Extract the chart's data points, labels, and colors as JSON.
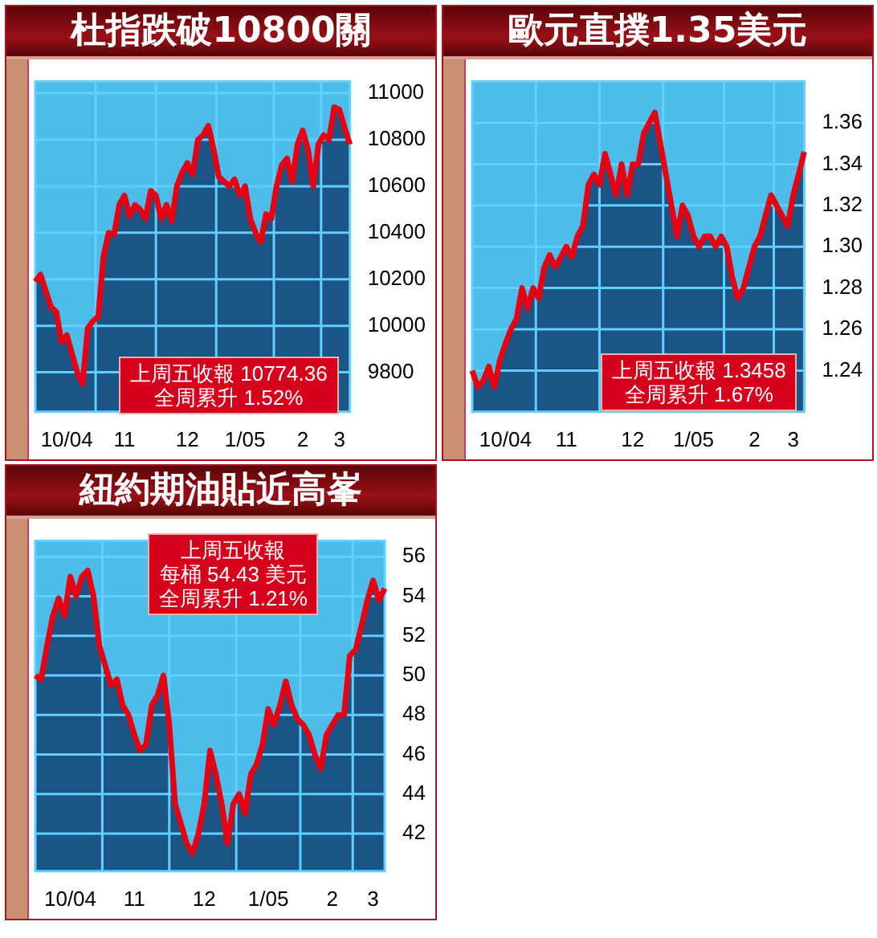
{
  "chart_data": [
    {
      "type": "area",
      "title": "杜指跌破10800關",
      "categories": [
        null,
        null,
        null,
        null,
        null,
        null,
        "10/04",
        null,
        null,
        null,
        null,
        null,
        null,
        null,
        null,
        null,
        null,
        "11",
        null,
        null,
        null,
        null,
        null,
        null,
        null,
        null,
        null,
        null,
        null,
        "12",
        null,
        null,
        null,
        null,
        null,
        null,
        null,
        null,
        null,
        null,
        "1/05",
        null,
        null,
        null,
        null,
        null,
        null,
        null,
        null,
        null,
        null,
        "2",
        null,
        null,
        null,
        null,
        null,
        null,
        "3",
        null,
        null
      ],
      "series": [
        {
          "color": "#1a5585",
          "values": [
            10190,
            10220,
            10150,
            10080,
            10060,
            9930,
            9960,
            9880,
            9800,
            9750,
            9990,
            10020,
            10040,
            10300,
            10400,
            10390,
            10520,
            10560,
            10470,
            10520,
            10500,
            10460,
            10580,
            10560,
            10460,
            10520,
            10450,
            10600,
            10660,
            10700,
            10650,
            10800,
            10820,
            10860,
            10760,
            10640,
            10620,
            10600,
            10630,
            10560,
            10600,
            10460,
            10400,
            10360,
            10480,
            10460,
            10600,
            10690,
            10720,
            10620,
            10780,
            10840,
            10760,
            10600,
            10780,
            10820,
            10800,
            10940,
            10930,
            10850,
            10780
          ]
        },
        {
          "type": "line",
          "color": "#e60012",
          "values": [
            10190,
            10220,
            10150,
            10080,
            10060,
            9930,
            9960,
            9880,
            9800,
            9750,
            9990,
            10020,
            10040,
            10300,
            10400,
            10390,
            10520,
            10560,
            10470,
            10520,
            10500,
            10460,
            10580,
            10560,
            10460,
            10520,
            10450,
            10600,
            10660,
            10700,
            10650,
            10800,
            10820,
            10860,
            10760,
            10640,
            10620,
            10600,
            10630,
            10560,
            10600,
            10460,
            10400,
            10360,
            10480,
            10460,
            10600,
            10690,
            10720,
            10620,
            10780,
            10840,
            10760,
            10600,
            10780,
            10820,
            10800,
            10940,
            10930,
            10850,
            10780
          ]
        }
      ],
      "ylim": [
        9630,
        11050
      ],
      "yticks": [
        9800,
        10000,
        10200,
        10400,
        10600,
        10800,
        11000
      ],
      "grid": true,
      "annotations": [
        "上周五收報 10774.36",
        "全周累升 1.52%"
      ]
    },
    {
      "type": "area",
      "title": "歐元直撲1.35美元",
      "categories": [
        null,
        null,
        null,
        null,
        null,
        null,
        "10/04",
        null,
        null,
        null,
        null,
        null,
        null,
        null,
        null,
        null,
        null,
        "11",
        null,
        null,
        null,
        null,
        null,
        null,
        null,
        null,
        null,
        null,
        null,
        "12",
        null,
        null,
        null,
        null,
        null,
        null,
        null,
        null,
        null,
        null,
        "1/05",
        null,
        null,
        null,
        null,
        null,
        null,
        null,
        null,
        null,
        null,
        "2",
        null,
        null,
        null,
        null,
        null,
        null,
        "3",
        null,
        null
      ],
      "series": [
        {
          "color": "#1a5585",
          "values": [
            1.24,
            1.232,
            1.235,
            1.242,
            1.232,
            1.245,
            1.253,
            1.26,
            1.265,
            1.28,
            1.27,
            1.28,
            1.275,
            1.29,
            1.296,
            1.29,
            1.295,
            1.3,
            1.295,
            1.305,
            1.31,
            1.33,
            1.335,
            1.33,
            1.345,
            1.335,
            1.325,
            1.34,
            1.325,
            1.34,
            1.34,
            1.355,
            1.36,
            1.365,
            1.35,
            1.335,
            1.32,
            1.305,
            1.32,
            1.315,
            1.305,
            1.3,
            1.305,
            1.305,
            1.3,
            1.305,
            1.3,
            1.285,
            1.275,
            1.28,
            1.29,
            1.3,
            1.305,
            1.315,
            1.325,
            1.32,
            1.315,
            1.31,
            1.325,
            1.335,
            1.346
          ]
        },
        {
          "type": "line",
          "color": "#e60012",
          "values": [
            1.24,
            1.232,
            1.235,
            1.242,
            1.232,
            1.245,
            1.253,
            1.26,
            1.265,
            1.28,
            1.27,
            1.28,
            1.275,
            1.29,
            1.296,
            1.29,
            1.295,
            1.3,
            1.295,
            1.305,
            1.31,
            1.33,
            1.335,
            1.33,
            1.345,
            1.335,
            1.325,
            1.34,
            1.325,
            1.34,
            1.34,
            1.355,
            1.36,
            1.365,
            1.35,
            1.335,
            1.32,
            1.305,
            1.32,
            1.315,
            1.305,
            1.3,
            1.305,
            1.305,
            1.3,
            1.305,
            1.3,
            1.285,
            1.275,
            1.28,
            1.29,
            1.3,
            1.305,
            1.315,
            1.325,
            1.32,
            1.315,
            1.31,
            1.325,
            1.335,
            1.346
          ]
        }
      ],
      "ylim": [
        1.22,
        1.38
      ],
      "yticks": [
        {
          "value": 1.24,
          "label": "1.24"
        },
        {
          "value": 1.26,
          "label": "1.26"
        },
        {
          "value": 1.28,
          "label": "1.28"
        },
        {
          "value": 1.3,
          "label": "1.30"
        },
        {
          "value": 1.32,
          "label": "1.32"
        },
        {
          "value": 1.34,
          "label": "1.34"
        },
        {
          "value": 1.36,
          "label": "1.36"
        }
      ],
      "grid": true,
      "annotations": [
        "上周五收報 1.3458",
        "全周累升 1.67%"
      ]
    },
    {
      "type": "area",
      "title": "紐約期油貼近高峯",
      "categories": [
        null,
        null,
        null,
        null,
        null,
        null,
        "10/04",
        null,
        null,
        null,
        null,
        null,
        null,
        null,
        null,
        null,
        null,
        "11",
        null,
        null,
        null,
        null,
        null,
        null,
        null,
        null,
        null,
        null,
        null,
        "12",
        null,
        null,
        null,
        null,
        null,
        null,
        null,
        null,
        null,
        null,
        "1/05",
        null,
        null,
        null,
        null,
        null,
        null,
        null,
        null,
        null,
        null,
        "2",
        null,
        null,
        null,
        null,
        null,
        null,
        "3",
        null,
        null
      ],
      "series": [
        {
          "color": "#1a5585",
          "values": [
            50,
            49.8,
            51.5,
            53,
            53.9,
            53,
            55,
            54,
            55,
            55.3,
            54,
            51.5,
            50.5,
            49.5,
            49.8,
            48.5,
            48,
            47,
            46.2,
            46.5,
            48.5,
            49,
            50,
            47.5,
            43.5,
            42.5,
            41.5,
            41,
            42,
            43.5,
            46.2,
            45,
            43.5,
            41.5,
            43.5,
            44,
            43,
            45,
            45.5,
            46.5,
            48.3,
            47.5,
            48.5,
            49.7,
            48.5,
            47.8,
            47.5,
            47,
            46,
            45.3,
            47,
            47.5,
            48,
            48,
            51,
            51.3,
            52.5,
            53.8,
            54.8,
            53.8,
            54.4
          ]
        },
        {
          "type": "line",
          "color": "#e60012",
          "values": [
            50,
            49.8,
            51.5,
            53,
            53.9,
            53,
            55,
            54,
            55,
            55.3,
            54,
            51.5,
            50.5,
            49.5,
            49.8,
            48.5,
            48,
            47,
            46.2,
            46.5,
            48.5,
            49,
            50,
            47.5,
            43.5,
            42.5,
            41.5,
            41,
            42,
            43.5,
            46.2,
            45,
            43.5,
            41.5,
            43.5,
            44,
            43,
            45,
            45.5,
            46.5,
            48.3,
            47.5,
            48.5,
            49.7,
            48.5,
            47.8,
            47.5,
            47,
            46,
            45.3,
            47,
            47.5,
            48,
            48,
            51,
            51.3,
            52.5,
            53.8,
            54.8,
            53.8,
            54.4
          ]
        }
      ],
      "ylim": [
        40.1,
        56.8
      ],
      "yticks": [
        42,
        44,
        46,
        48,
        50,
        52,
        54,
        56
      ],
      "grid": true,
      "annotations": [
        "上周五收報",
        "每桶 54.43 美元",
        "全周累升 1.21%"
      ]
    }
  ]
}
